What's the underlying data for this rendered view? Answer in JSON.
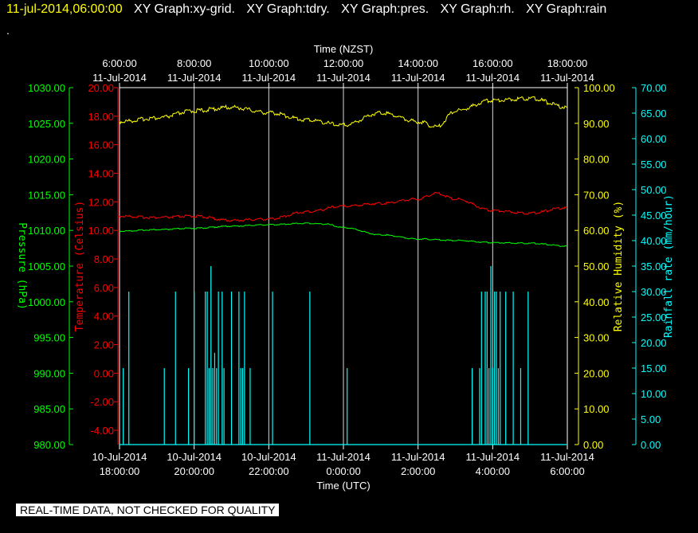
{
  "header": {
    "timestamp": "11-jul-2014,06:00:00",
    "graphs": [
      "XY Graph:xy-grid.",
      "XY Graph:tdry.",
      "XY Graph:pres.",
      "XY Graph:rh.",
      "XY Graph:rain"
    ],
    "dot": "."
  },
  "footer": {
    "notice": "REAL-TIME DATA, NOT CHECKED FOR QUALITY"
  },
  "colors": {
    "background": "#000000",
    "pressure": "#00ff00",
    "temperature": "#ff0000",
    "humidity": "#ffff00",
    "rainfall": "#00ffff",
    "grid": "#ffffff"
  },
  "chart_data": {
    "type": "line",
    "top_axis": {
      "title": "Time (NZST)",
      "ticks": [
        {
          "time": "6:00:00",
          "date": "11-Jul-2014"
        },
        {
          "time": "8:00:00",
          "date": "11-Jul-2014"
        },
        {
          "time": "10:00:00",
          "date": "11-Jul-2014"
        },
        {
          "time": "12:00:00",
          "date": "11-Jul-2014"
        },
        {
          "time": "14:00:00",
          "date": "11-Jul-2014"
        },
        {
          "time": "16:00:00",
          "date": "11-Jul-2014"
        },
        {
          "time": "18:00:00",
          "date": "11-Jul-2014"
        }
      ]
    },
    "bottom_axis": {
      "title": "Time (UTC)",
      "ticks": [
        {
          "date": "10-Jul-2014",
          "time": "18:00:00"
        },
        {
          "date": "10-Jul-2014",
          "time": "20:00:00"
        },
        {
          "date": "10-Jul-2014",
          "time": "22:00:00"
        },
        {
          "date": "11-Jul-2014",
          "time": "0:00:00"
        },
        {
          "date": "11-Jul-2014",
          "time": "2:00:00"
        },
        {
          "date": "11-Jul-2014",
          "time": "4:00:00"
        },
        {
          "date": "11-Jul-2014",
          "time": "6:00:00"
        }
      ]
    },
    "x_range_hours": [
      0,
      12
    ],
    "gridlines_hours": [
      2,
      4,
      6,
      8,
      10
    ],
    "axes": {
      "pressure": {
        "label": "Pressure (hPa)",
        "range": [
          980,
          1030
        ],
        "ticks": [
          "980.00",
          "985.00",
          "990.00",
          "995.00",
          "1000.00",
          "1005.00",
          "1010.00",
          "1015.00",
          "1020.00",
          "1025.00",
          "1030.00"
        ]
      },
      "temperature": {
        "label": "Temperature (Celsius)",
        "range": [
          -5,
          20
        ],
        "ticks": [
          "-4.00",
          "-2.00",
          "0.00",
          "2.00",
          "4.00",
          "6.00",
          "8.00",
          "10.00",
          "12.00",
          "14.00",
          "16.00",
          "18.00",
          "20.00"
        ]
      },
      "humidity": {
        "label": "Relative Humidity (%)",
        "range": [
          0,
          100
        ],
        "ticks": [
          "0.00",
          "10.00",
          "20.00",
          "30.00",
          "40.00",
          "50.00",
          "60.00",
          "70.00",
          "80.00",
          "90.00",
          "100.00"
        ]
      },
      "rainfall": {
        "label": "Rainfall rate (mm/hour)",
        "range": [
          0,
          70
        ],
        "ticks": [
          "0.00",
          "5.00",
          "10.00",
          "15.00",
          "20.00",
          "25.00",
          "30.00",
          "35.00",
          "40.00",
          "45.00",
          "50.00",
          "55.00",
          "60.00",
          "65.00",
          "70.00"
        ]
      }
    },
    "series": [
      {
        "name": "pressure",
        "axis": "pressure",
        "x": [
          0,
          1,
          2,
          3,
          4,
          5,
          5.5,
          6,
          7,
          8,
          9,
          10,
          11,
          12
        ],
        "y": [
          1009.9,
          1010.1,
          1010.3,
          1010.6,
          1010.8,
          1011.0,
          1010.9,
          1010.4,
          1009.4,
          1008.8,
          1008.6,
          1008.3,
          1008.2,
          1007.8
        ]
      },
      {
        "name": "temperature",
        "axis": "temperature",
        "x": [
          0,
          1,
          2,
          3,
          4,
          5,
          6,
          7,
          8,
          8.5,
          9,
          10,
          11,
          12
        ],
        "y": [
          11.0,
          10.9,
          11.0,
          10.7,
          10.8,
          11.3,
          11.7,
          11.9,
          12.2,
          12.6,
          12.2,
          11.4,
          11.2,
          11.6
        ]
      },
      {
        "name": "humidity",
        "axis": "humidity",
        "x": [
          0,
          1,
          2,
          3,
          4,
          5,
          6,
          7,
          8,
          8.5,
          9,
          10,
          11,
          12
        ],
        "y": [
          90.5,
          91.5,
          93.5,
          94.5,
          93.0,
          91.0,
          89.5,
          93.0,
          90.5,
          89.0,
          93.5,
          96.5,
          97.0,
          94.5
        ]
      },
      {
        "name": "rainfall",
        "axis": "rainfall",
        "spikes_x": [
          0.1,
          0.25,
          1.2,
          1.5,
          1.85,
          2.0,
          2.3,
          2.35,
          2.4,
          2.45,
          2.5,
          2.55,
          2.6,
          2.65,
          2.75,
          2.8,
          3.0,
          3.2,
          3.25,
          3.3,
          3.35,
          3.5,
          4.1,
          5.1,
          6.1,
          9.45,
          9.65,
          9.7,
          9.8,
          9.85,
          9.9,
          9.95,
          10.0,
          10.05,
          10.1,
          10.15,
          10.2,
          10.35,
          10.55,
          10.75,
          10.95
        ],
        "spikes_y": [
          15,
          30,
          15,
          30,
          15,
          30,
          30,
          30,
          15,
          35,
          15,
          18,
          15,
          30,
          30,
          15,
          30,
          30,
          15,
          15,
          30,
          15,
          30,
          30,
          15,
          15,
          15,
          30,
          30,
          30,
          15,
          35,
          15,
          30,
          30,
          15,
          30,
          30,
          30,
          15,
          30
        ]
      }
    ]
  }
}
